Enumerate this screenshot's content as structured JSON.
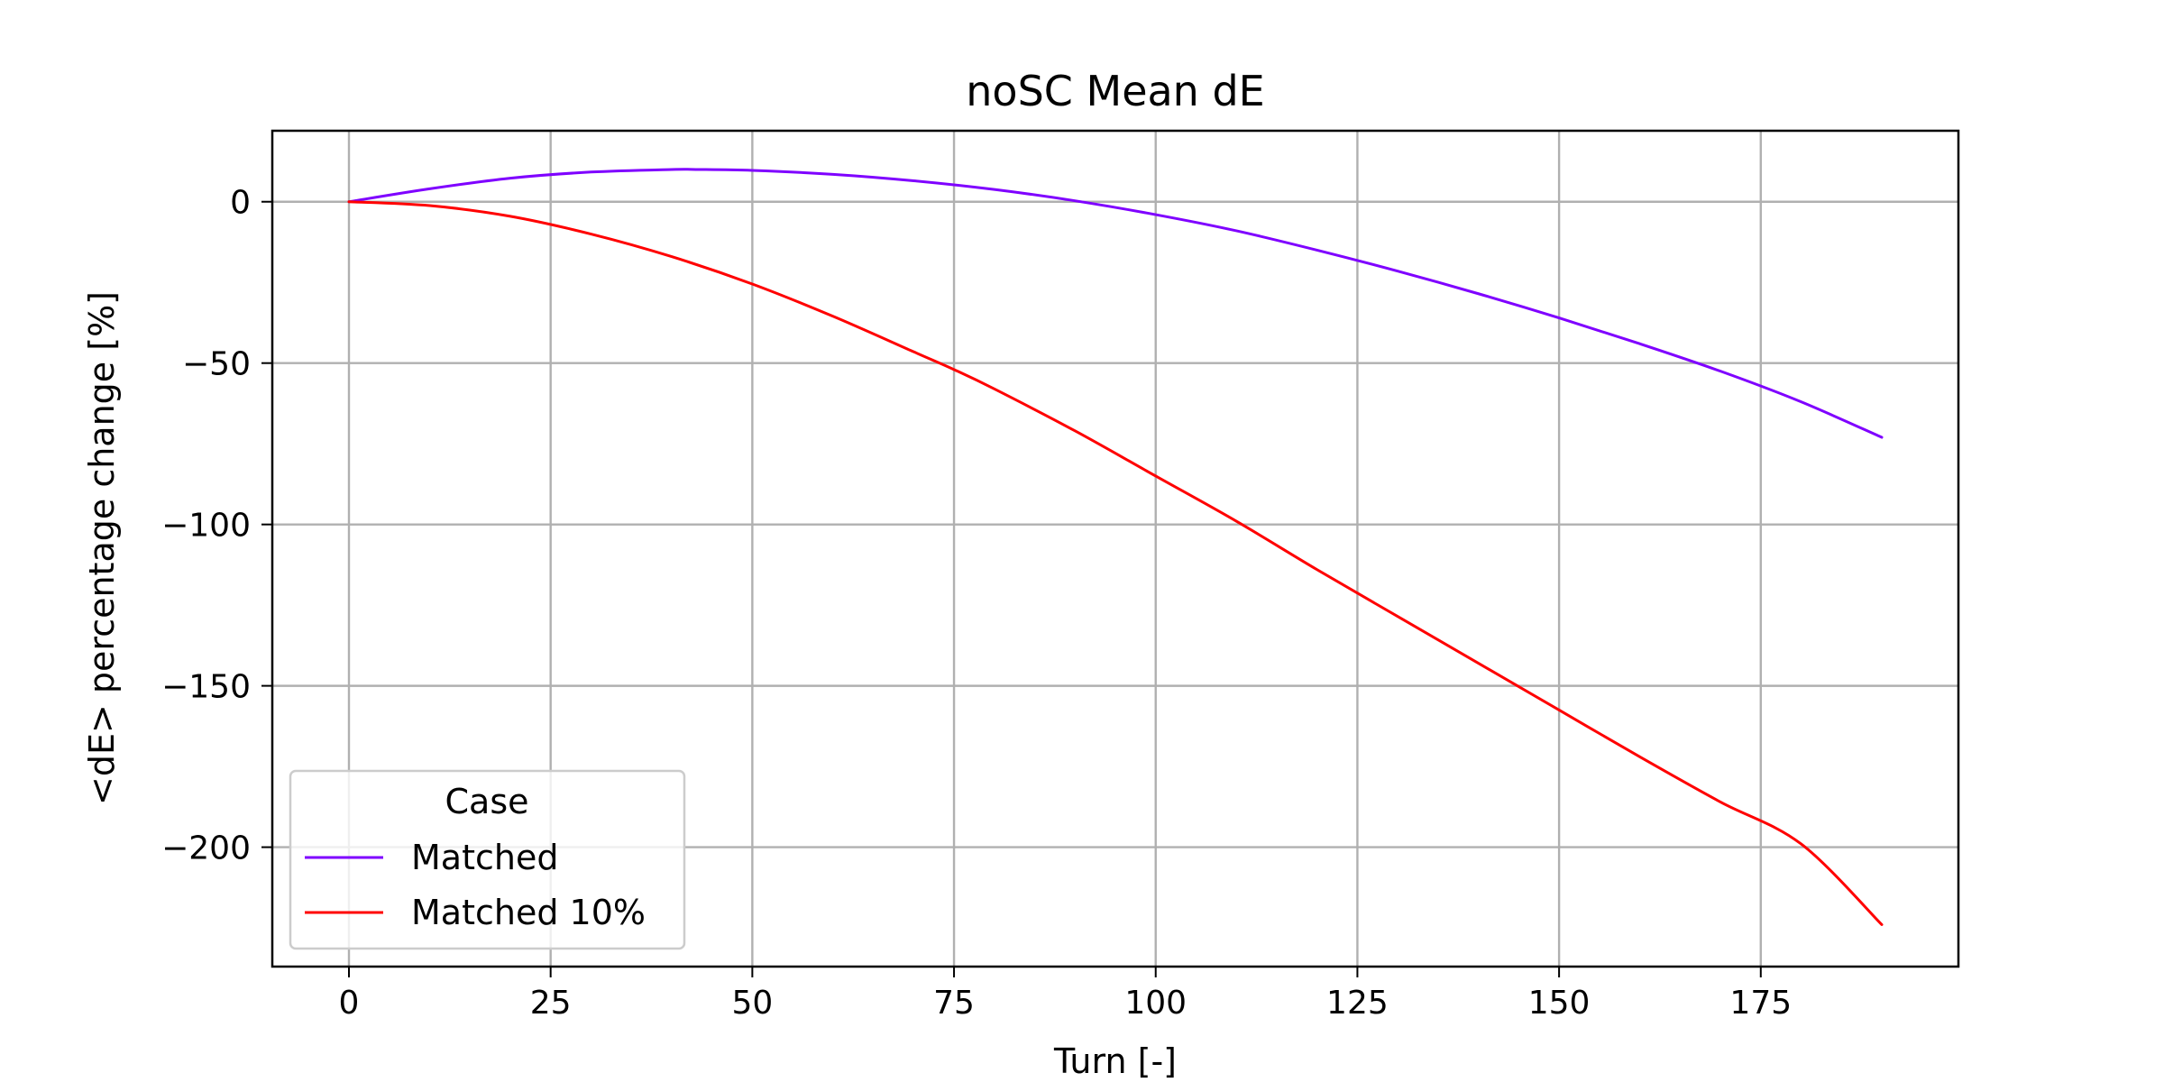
{
  "chart_data": {
    "type": "line",
    "title": "noSC Mean dE",
    "xlabel": "Turn [-]",
    "ylabel": "<dE> percentage change [%]",
    "xlim": [
      -9.5,
      199.5
    ],
    "ylim": [
      -237,
      22
    ],
    "xticks": [
      0,
      25,
      50,
      75,
      100,
      125,
      150,
      175
    ],
    "yticks": [
      0,
      -50,
      -100,
      -150,
      -200
    ],
    "xtick_labels": [
      "0",
      "25",
      "50",
      "75",
      "100",
      "125",
      "150",
      "175"
    ],
    "ytick_labels": [
      "0",
      "−50",
      "−100",
      "−150",
      "−200"
    ],
    "grid": true,
    "legend": {
      "title": "Case",
      "position": "lower-left"
    },
    "series": [
      {
        "name": "Matched",
        "color": "#7f00ff",
        "x": [
          0,
          10,
          20,
          30,
          40,
          43,
          50,
          60,
          70,
          80,
          90,
          100,
          110,
          120,
          130,
          140,
          150,
          160,
          170,
          180,
          190
        ],
        "y": [
          0,
          4,
          7.3,
          9.2,
          10,
          10,
          9.7,
          8.5,
          6.5,
          3.8,
          0.3,
          -4,
          -9,
          -15,
          -21.5,
          -28.5,
          -36,
          -44,
          -52.5,
          -62,
          -73
        ]
      },
      {
        "name": "Matched 10%",
        "color": "#ff0000",
        "x": [
          0,
          10,
          20,
          30,
          40,
          50,
          60,
          70,
          75,
          80,
          90,
          100,
          110,
          120,
          130,
          140,
          150,
          160,
          170,
          180,
          190
        ],
        "y": [
          0,
          -1.2,
          -4.5,
          -10,
          -17,
          -25.5,
          -35.5,
          -46.5,
          -52,
          -58,
          -71,
          -85,
          -99,
          -114,
          -128.5,
          -143,
          -157.5,
          -172,
          -186,
          -199,
          -224
        ]
      }
    ]
  }
}
